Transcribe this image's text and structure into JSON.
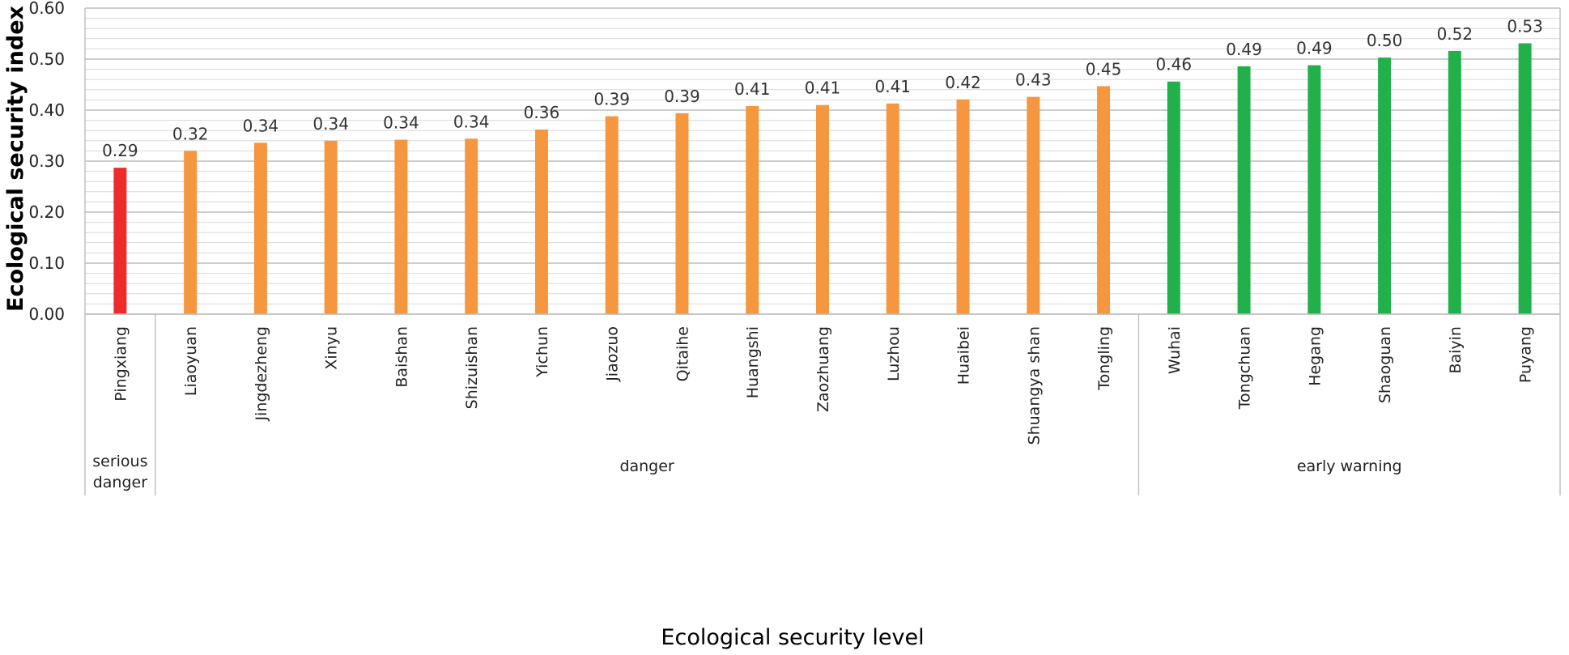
{
  "chart_data": {
    "type": "bar",
    "title": "",
    "xlabel": "Ecological security level",
    "ylabel": "Ecological security index",
    "ylim": [
      0,
      0.6
    ],
    "yticks": [
      "0.00",
      "0.10",
      "0.20",
      "0.30",
      "0.40",
      "0.50",
      "0.60"
    ],
    "grid": true,
    "categories": [
      "Pingxiang",
      "Liaoyuan",
      "Jingdezheng",
      "Xinyu",
      "Baishan",
      "Shizuishan",
      "Yichun",
      "Jiaozuo",
      "Qitaihe",
      "Huangshi",
      "Zaozhuang",
      "Luzhou",
      "Huaibei",
      "Shuangya shan",
      "Tongling",
      "Wuhai",
      "Tongchuan",
      "Hegang",
      "Shaoguan",
      "Baiyin",
      "Puyang"
    ],
    "values": [
      0.287,
      0.32,
      0.336,
      0.34,
      0.342,
      0.344,
      0.362,
      0.388,
      0.394,
      0.408,
      0.41,
      0.413,
      0.421,
      0.426,
      0.447,
      0.456,
      0.486,
      0.488,
      0.503,
      0.516,
      0.531
    ],
    "value_labels": [
      "0.29",
      "0.32",
      "0.34",
      "0.34",
      "0.34",
      "0.34",
      "0.36",
      "0.39",
      "0.39",
      "0.41",
      "0.41",
      "0.41",
      "0.42",
      "0.43",
      "0.45",
      "0.46",
      "0.49",
      "0.49",
      "0.50",
      "0.52",
      "0.53"
    ],
    "groups": [
      {
        "label": "serious\ndanger",
        "start": 0,
        "end": 0,
        "color": "#ee2b2b"
      },
      {
        "label": "danger",
        "start": 1,
        "end": 14,
        "color": "#f5973f"
      },
      {
        "label": "early warning",
        "start": 15,
        "end": 20,
        "color": "#22b04b"
      }
    ]
  }
}
